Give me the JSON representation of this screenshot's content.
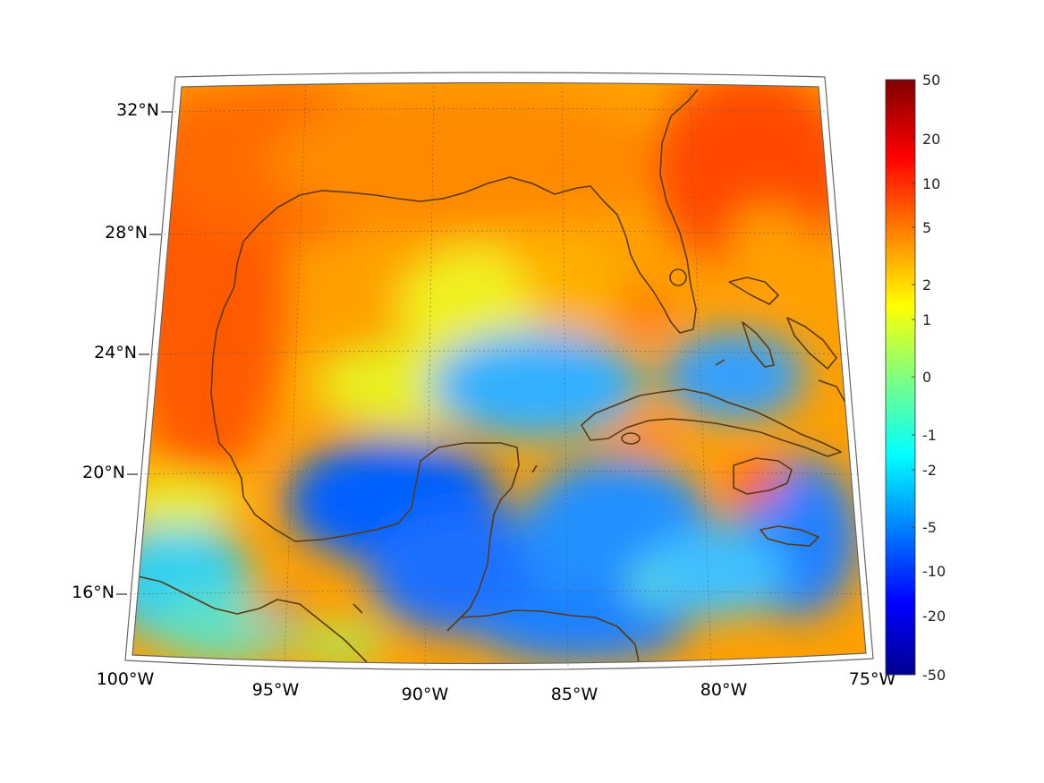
{
  "map": {
    "lon_labels": [
      "100°W",
      "95°W",
      "90°W",
      "85°W",
      "80°W",
      "75°W"
    ],
    "lat_labels": [
      "32°N",
      "28°N",
      "24°N",
      "20°N",
      "16°N"
    ],
    "projection": "conic",
    "coastline_color": "#5b3a10",
    "grid": "dotted"
  },
  "colorbar": {
    "tick_labels": [
      "50",
      "20",
      "10",
      "5",
      "2",
      "1",
      "0",
      "-1",
      "-2",
      "-5",
      "-10",
      "-20",
      "-50"
    ],
    "colormap": "jet"
  }
}
